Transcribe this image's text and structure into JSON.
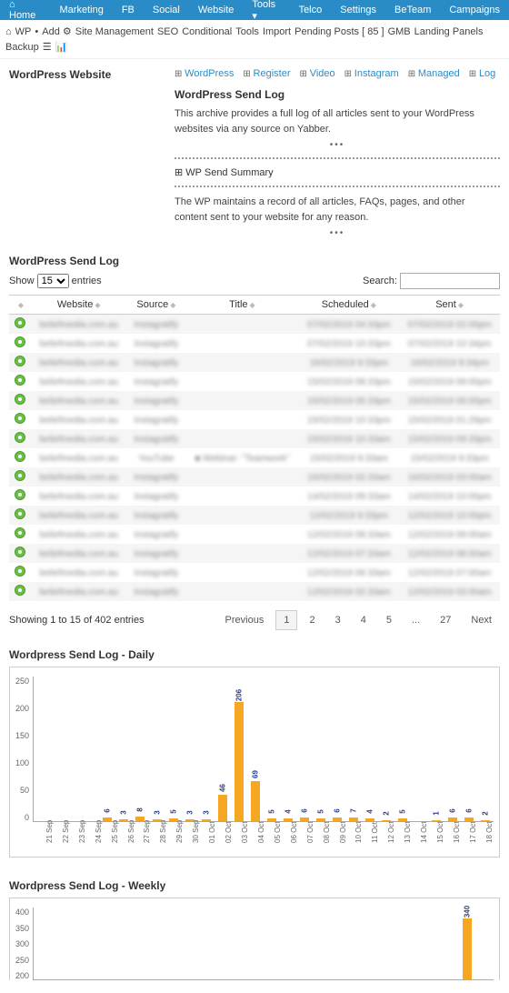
{
  "topnav": {
    "items": [
      "Home",
      "Marketing",
      "FB",
      "Social",
      "Website",
      "Tools ▾",
      "Telco",
      "Settings",
      "BeTeam",
      "Campaigns"
    ]
  },
  "secnav": {
    "crumbs": [
      "⌂",
      "WP",
      "•",
      "Add ⚙",
      "Site Management",
      "SEO",
      "Conditional",
      "Tools",
      "Import",
      "Pending Posts  [ 85 ]",
      "GMB",
      "Landing Panels",
      "Backup",
      "☰",
      "📊"
    ]
  },
  "leftTitle": "WordPress Website",
  "links": [
    "WordPress",
    "Register",
    "Video",
    "Instagram",
    "Managed",
    "Log"
  ],
  "sendLog": {
    "title": "WordPress Send Log",
    "desc": "This archive provides a full log of all articles sent to your WordPress websites via any source on Yabber.",
    "summaryTitle": "WP Send Summary",
    "summaryDesc": "The WP maintains a record of all articles, FAQs, pages, and other content sent to your website for any reason."
  },
  "table": {
    "heading": "WordPress Send Log",
    "showLabel": "Show",
    "entriesLabel": "entries",
    "pageSize": "15",
    "searchLabel": "Search:",
    "columns": [
      "",
      "Website",
      "Source",
      "Title",
      "Scheduled",
      "Sent"
    ],
    "rows": [
      {
        "website": "beliefmedia.com.au",
        "source": "Instagratify",
        "title": "",
        "scheduled": "07/02/2019 04:33pm",
        "sent": "07/02/2019 02:00pm"
      },
      {
        "website": "beliefmedia.com.au",
        "source": "Instagratify",
        "title": "",
        "scheduled": "07/02/2019 10:33pm",
        "sent": "07/02/2019 10:34pm"
      },
      {
        "website": "beliefmedia.com.au",
        "source": "Instagratify",
        "title": "",
        "scheduled": "16/02/2019 9:33pm",
        "sent": "16/02/2019 9:34pm"
      },
      {
        "website": "beliefmedia.com.au",
        "source": "Instagratify",
        "title": "",
        "scheduled": "15/02/2019 08:33pm",
        "sent": "15/02/2019 09:00pm"
      },
      {
        "website": "beliefmedia.com.au",
        "source": "Instagratify",
        "title": "",
        "scheduled": "15/02/2019 05:33pm",
        "sent": "15/02/2019 06:00pm"
      },
      {
        "website": "beliefmedia.com.au",
        "source": "Instagratify",
        "title": "",
        "scheduled": "15/02/2019 10:33pm",
        "sent": "15/02/2019 01:29pm"
      },
      {
        "website": "beliefmedia.com.au",
        "source": "Instagratify",
        "title": "",
        "scheduled": "15/02/2019 10:33am",
        "sent": "15/02/2019 09:33pm"
      },
      {
        "website": "beliefmedia.com.au",
        "source": "YouTube",
        "title": "■ Webinar: \"Teamwork\"",
        "scheduled": "15/02/2019 9:33am",
        "sent": "15/02/2019 9:33pm"
      },
      {
        "website": "beliefmedia.com.au",
        "source": "Instagratify",
        "title": "",
        "scheduled": "16/02/2019 02:33am",
        "sent": "16/02/2019 03:00am"
      },
      {
        "website": "beliefmedia.com.au",
        "source": "Instagratify",
        "title": "",
        "scheduled": "14/02/2019 09:33am",
        "sent": "14/02/2019 10:00pm"
      },
      {
        "website": "beliefmedia.com.au",
        "source": "Instagratify",
        "title": "",
        "scheduled": "12/02/2019 9:33pm",
        "sent": "12/02/2019 10:00pm"
      },
      {
        "website": "beliefmedia.com.au",
        "source": "Instagratify",
        "title": "",
        "scheduled": "12/02/2019 08:33am",
        "sent": "12/02/2019 09:00am"
      },
      {
        "website": "beliefmedia.com.au",
        "source": "Instagratify",
        "title": "",
        "scheduled": "12/02/2019 07:33am",
        "sent": "12/02/2019 08:00am"
      },
      {
        "website": "beliefmedia.com.au",
        "source": "Instagratify",
        "title": "",
        "scheduled": "12/02/2019 06:33am",
        "sent": "12/02/2019 07:00am"
      },
      {
        "website": "beliefmedia.com.au",
        "source": "Instagratify",
        "title": "",
        "scheduled": "12/02/2019 02:33am",
        "sent": "12/02/2019 03:00am"
      }
    ],
    "info": "Showing 1 to 15 of 402 entries",
    "pagination": {
      "prev": "Previous",
      "pages": [
        "1",
        "2",
        "3",
        "4",
        "5",
        "...",
        "27"
      ],
      "next": "Next",
      "active": "1"
    }
  },
  "chart1": {
    "title": "Wordpress Send Log - Daily",
    "type": "bar",
    "ylim": [
      0,
      250
    ],
    "yticks": [
      0,
      50,
      100,
      150,
      200,
      250
    ],
    "bar_color": "#f5a623",
    "value_color": "#2b3d7b",
    "categories": [
      "21 Sep",
      "22 Sep",
      "23 Sep",
      "24 Sep",
      "25 Sep",
      "26 Sep",
      "27 Sep",
      "28 Sep",
      "29 Sep",
      "30 Sep",
      "01 Oct",
      "02 Oct",
      "03 Oct",
      "04 Oct",
      "05 Oct",
      "06 Oct",
      "07 Oct",
      "08 Oct",
      "09 Oct",
      "10 Oct",
      "11 Oct",
      "12 Oct",
      "13 Oct",
      "14 Oct",
      "15 Oct",
      "16 Oct",
      "17 Oct",
      "18 Oct"
    ],
    "values": [
      0,
      0,
      0,
      0,
      6,
      3,
      8,
      3,
      5,
      3,
      3,
      46,
      206,
      69,
      5,
      4,
      6,
      5,
      6,
      7,
      4,
      2,
      5,
      0,
      1,
      6,
      6,
      2
    ]
  },
  "chart2": {
    "title": "Wordpress Send Log - Weekly",
    "type": "bar",
    "ylim": [
      150,
      400
    ],
    "yticks": [
      200,
      250,
      300,
      350,
      400
    ],
    "bar_color": "#f5a623",
    "value_color": "#2b3d7b",
    "categories": [
      "",
      "",
      "",
      "",
      "",
      "",
      "",
      "",
      "",
      "",
      "",
      "",
      "",
      "",
      "",
      "",
      "",
      "",
      "",
      "",
      "",
      "",
      "",
      "",
      "",
      ""
    ],
    "values": [
      0,
      0,
      0,
      0,
      0,
      0,
      0,
      0,
      0,
      0,
      0,
      0,
      0,
      0,
      0,
      0,
      0,
      0,
      0,
      0,
      0,
      0,
      0,
      0,
      340,
      0
    ]
  }
}
